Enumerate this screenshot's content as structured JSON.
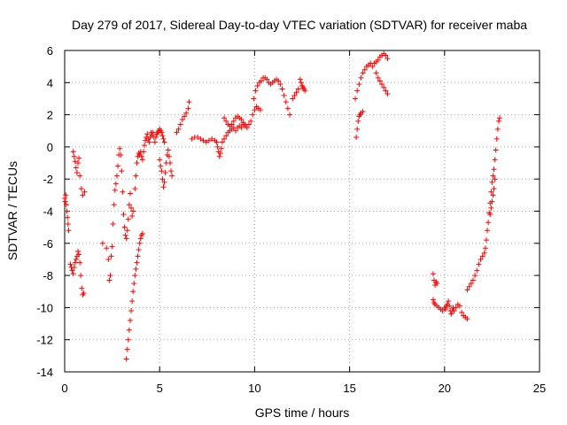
{
  "chart_data": {
    "type": "scatter",
    "title": "Day 279 of 2017, Sidereal Day-to-day VTEC variation (SDTVAR) for receiver maba",
    "xlabel": "GPS time / hours",
    "ylabel": "SDTVAR / TECUs",
    "xlim": [
      0,
      25
    ],
    "ylim": [
      -14,
      6
    ],
    "xticks": [
      0,
      5,
      10,
      15,
      20,
      25
    ],
    "yticks": [
      -14,
      -12,
      -10,
      -8,
      -6,
      -4,
      -2,
      0,
      2,
      4,
      6
    ],
    "xtick_labels": [
      "0",
      "5",
      "10",
      "15",
      "20",
      "25"
    ],
    "ytick_labels": [
      "-14",
      "-12",
      "-10",
      "-8",
      "-6",
      "-4",
      "-2",
      "0",
      "2",
      "4",
      "6"
    ],
    "grid": true,
    "legend": "none",
    "marker": "plus",
    "marker_color": "#ff0000",
    "series": [
      {
        "points": [
          [
            0.0,
            -3.2
          ],
          [
            0.03,
            -3.4
          ],
          [
            0.06,
            -3.0
          ],
          [
            0.09,
            -3.6
          ],
          [
            0.12,
            -4.0
          ],
          [
            0.15,
            -4.4
          ],
          [
            0.18,
            -4.8
          ],
          [
            0.21,
            -5.2
          ],
          [
            0.3,
            -7.3
          ],
          [
            0.35,
            -7.5
          ],
          [
            0.4,
            -7.7
          ],
          [
            0.45,
            -7.9
          ],
          [
            0.5,
            -7.5
          ],
          [
            0.55,
            -7.2
          ],
          [
            0.6,
            -7.0
          ],
          [
            0.65,
            -6.8
          ],
          [
            0.7,
            -6.5
          ],
          [
            0.75,
            -6.7
          ],
          [
            0.8,
            -7.2
          ],
          [
            0.85,
            -8.0
          ],
          [
            0.9,
            -8.8
          ],
          [
            0.95,
            -9.2
          ],
          [
            1.0,
            -9.1
          ],
          [
            0.45,
            -0.3
          ],
          [
            0.5,
            -0.6
          ],
          [
            0.55,
            -0.9
          ],
          [
            0.6,
            -1.3
          ],
          [
            0.65,
            -1.6
          ],
          [
            0.7,
            -1.0
          ],
          [
            0.75,
            -0.7
          ],
          [
            0.8,
            -1.8
          ],
          [
            0.88,
            -2.6
          ],
          [
            0.95,
            -3.0
          ],
          [
            1.05,
            -2.8
          ],
          [
            2.0,
            -6.0
          ],
          [
            2.2,
            -6.3
          ],
          [
            2.3,
            -7.0
          ],
          [
            2.35,
            -8.3
          ],
          [
            2.4,
            -8.0
          ],
          [
            2.45,
            -6.8
          ],
          [
            2.5,
            -6.2
          ],
          [
            2.55,
            -4.8
          ],
          [
            2.6,
            -3.6
          ],
          [
            2.65,
            -2.7
          ],
          [
            2.7,
            -2.3
          ],
          [
            2.75,
            -1.8
          ],
          [
            2.8,
            -1.2
          ],
          [
            2.85,
            -0.5
          ],
          [
            2.9,
            -0.1
          ],
          [
            2.95,
            -0.5
          ],
          [
            3.0,
            -1.5
          ],
          [
            3.05,
            -2.8
          ],
          [
            3.1,
            -4.2
          ],
          [
            3.15,
            -5.0
          ],
          [
            3.2,
            -5.5
          ],
          [
            3.25,
            -5.7
          ],
          [
            3.3,
            -5.2
          ],
          [
            3.35,
            -4.5
          ],
          [
            3.4,
            -3.6
          ],
          [
            3.45,
            -2.9
          ],
          [
            3.5,
            -3.8
          ],
          [
            3.55,
            -4.3
          ],
          [
            3.6,
            -4.0
          ],
          [
            3.25,
            -13.2
          ],
          [
            3.3,
            -12.6
          ],
          [
            3.35,
            -12.0
          ],
          [
            3.4,
            -11.4
          ],
          [
            3.45,
            -10.8
          ],
          [
            3.5,
            -10.2
          ],
          [
            3.55,
            -9.6
          ],
          [
            3.6,
            -9.0
          ],
          [
            3.65,
            -8.5
          ],
          [
            3.7,
            -8.0
          ],
          [
            3.75,
            -7.6
          ],
          [
            3.8,
            -7.2
          ],
          [
            3.85,
            -6.8
          ],
          [
            3.9,
            -6.4
          ],
          [
            3.95,
            -6.0
          ],
          [
            4.0,
            -5.7
          ],
          [
            4.05,
            -5.5
          ],
          [
            4.1,
            -5.4
          ],
          [
            3.7,
            -2.6
          ],
          [
            3.75,
            -1.8
          ],
          [
            3.8,
            -1.0
          ],
          [
            3.85,
            -0.6
          ],
          [
            3.9,
            -0.4
          ],
          [
            3.95,
            -0.5
          ],
          [
            4.0,
            -0.3
          ],
          [
            4.05,
            -0.6
          ],
          [
            4.1,
            -0.8
          ],
          [
            4.15,
            -0.3
          ],
          [
            4.2,
            0.1
          ],
          [
            4.25,
            0.4
          ],
          [
            4.3,
            0.6
          ],
          [
            4.35,
            0.8
          ],
          [
            4.4,
            0.5
          ],
          [
            4.45,
            0.3
          ],
          [
            4.5,
            0.6
          ],
          [
            4.55,
            0.9
          ],
          [
            4.6,
            0.7
          ],
          [
            4.65,
            0.9
          ],
          [
            4.7,
            0.6
          ],
          [
            4.75,
            0.3
          ],
          [
            4.8,
            0.6
          ],
          [
            4.85,
            0.8
          ],
          [
            4.9,
            0.9
          ],
          [
            4.95,
            1.0
          ],
          [
            5.0,
            1.1
          ],
          [
            5.05,
            1.0
          ],
          [
            5.1,
            0.9
          ],
          [
            5.15,
            0.7
          ],
          [
            5.2,
            0.5
          ],
          [
            5.25,
            0.3
          ],
          [
            5.0,
            -0.8
          ],
          [
            5.05,
            -1.2
          ],
          [
            5.1,
            -1.5
          ],
          [
            5.15,
            -2.0
          ],
          [
            5.2,
            -2.5
          ],
          [
            5.25,
            -2.2
          ],
          [
            5.3,
            -1.6
          ],
          [
            5.35,
            -1.0
          ],
          [
            5.4,
            -0.5
          ],
          [
            5.45,
            -0.2
          ],
          [
            5.5,
            -0.6
          ],
          [
            5.55,
            -1.0
          ],
          [
            5.6,
            -1.5
          ],
          [
            5.65,
            -1.8
          ],
          [
            5.9,
            0.9
          ],
          [
            6.0,
            1.1
          ],
          [
            6.1,
            1.4
          ],
          [
            6.2,
            1.7
          ],
          [
            6.3,
            1.9
          ],
          [
            6.4,
            2.1
          ],
          [
            6.5,
            2.4
          ],
          [
            6.55,
            2.8
          ],
          [
            6.7,
            0.5
          ],
          [
            6.85,
            0.6
          ],
          [
            7.0,
            0.6
          ],
          [
            7.15,
            0.5
          ],
          [
            7.3,
            0.4
          ],
          [
            7.45,
            0.3
          ],
          [
            7.6,
            0.4
          ],
          [
            7.75,
            0.5
          ],
          [
            7.9,
            0.4
          ],
          [
            8.0,
            0.3
          ],
          [
            8.05,
            0.0
          ],
          [
            8.1,
            -0.3
          ],
          [
            8.15,
            -0.6
          ],
          [
            8.2,
            -0.4
          ],
          [
            8.25,
            -0.1
          ],
          [
            8.3,
            0.3
          ],
          [
            8.4,
            0.5
          ],
          [
            8.5,
            0.7
          ],
          [
            8.6,
            0.9
          ],
          [
            8.7,
            1.0
          ],
          [
            8.8,
            1.1
          ],
          [
            8.9,
            1.2
          ],
          [
            9.0,
            1.0
          ],
          [
            9.1,
            1.2
          ],
          [
            9.2,
            1.3
          ],
          [
            9.3,
            1.2
          ],
          [
            9.4,
            1.4
          ],
          [
            9.5,
            1.3
          ],
          [
            9.6,
            1.2
          ],
          [
            9.7,
            1.4
          ],
          [
            9.8,
            1.6
          ],
          [
            9.9,
            2.0
          ],
          [
            10.0,
            2.3
          ],
          [
            10.1,
            2.5
          ],
          [
            10.2,
            2.4
          ],
          [
            10.3,
            2.3
          ],
          [
            8.4,
            1.8
          ],
          [
            8.5,
            1.6
          ],
          [
            8.6,
            1.4
          ],
          [
            8.7,
            1.3
          ],
          [
            8.8,
            1.4
          ],
          [
            8.9,
            1.6
          ],
          [
            9.0,
            1.8
          ],
          [
            9.1,
            1.9
          ],
          [
            9.2,
            1.8
          ],
          [
            9.3,
            1.7
          ],
          [
            9.4,
            1.5
          ],
          [
            9.5,
            1.4
          ],
          [
            9.95,
            3.0
          ],
          [
            10.05,
            3.5
          ],
          [
            10.15,
            3.8
          ],
          [
            10.25,
            4.0
          ],
          [
            10.35,
            4.1
          ],
          [
            10.45,
            4.3
          ],
          [
            10.55,
            4.3
          ],
          [
            10.65,
            4.2
          ],
          [
            10.75,
            4.0
          ],
          [
            10.85,
            3.9
          ],
          [
            10.95,
            4.0
          ],
          [
            11.05,
            4.1
          ],
          [
            11.15,
            4.2
          ],
          [
            11.25,
            4.1
          ],
          [
            11.35,
            3.9
          ],
          [
            11.45,
            3.6
          ],
          [
            11.55,
            3.2
          ],
          [
            11.65,
            2.8
          ],
          [
            11.75,
            2.4
          ],
          [
            11.85,
            2.0
          ],
          [
            12.0,
            3.0
          ],
          [
            12.1,
            3.2
          ],
          [
            12.2,
            3.4
          ],
          [
            12.3,
            3.6
          ],
          [
            12.4,
            4.2
          ],
          [
            12.45,
            4.0
          ],
          [
            12.5,
            3.8
          ],
          [
            12.55,
            3.7
          ],
          [
            12.6,
            3.6
          ],
          [
            12.65,
            3.5
          ],
          [
            15.35,
            0.6
          ],
          [
            15.4,
            1.1
          ],
          [
            15.45,
            1.6
          ],
          [
            15.5,
            1.9
          ],
          [
            15.55,
            2.0
          ],
          [
            15.6,
            2.1
          ],
          [
            15.7,
            2.2
          ],
          [
            15.3,
            3.0
          ],
          [
            15.4,
            3.5
          ],
          [
            15.5,
            3.9
          ],
          [
            15.6,
            4.3
          ],
          [
            15.7,
            4.6
          ],
          [
            15.8,
            4.8
          ],
          [
            15.9,
            5.0
          ],
          [
            16.0,
            5.1
          ],
          [
            16.1,
            5.2
          ],
          [
            16.2,
            5.0
          ],
          [
            16.3,
            5.2
          ],
          [
            16.4,
            5.3
          ],
          [
            16.5,
            5.4
          ],
          [
            16.6,
            5.6
          ],
          [
            16.7,
            5.7
          ],
          [
            16.8,
            5.8
          ],
          [
            16.9,
            5.7
          ],
          [
            17.0,
            5.5
          ],
          [
            16.4,
            4.6
          ],
          [
            16.5,
            4.3
          ],
          [
            16.6,
            4.1
          ],
          [
            16.7,
            3.9
          ],
          [
            16.8,
            3.7
          ],
          [
            16.9,
            3.5
          ],
          [
            17.0,
            3.3
          ],
          [
            19.4,
            -7.9
          ],
          [
            19.45,
            -8.3
          ],
          [
            19.5,
            -8.6
          ],
          [
            19.55,
            -8.4
          ],
          [
            19.6,
            -8.5
          ],
          [
            19.4,
            -9.5
          ],
          [
            19.45,
            -9.7
          ],
          [
            19.5,
            -9.8
          ],
          [
            19.6,
            -9.9
          ],
          [
            19.7,
            -10.0
          ],
          [
            19.8,
            -10.1
          ],
          [
            19.9,
            -10.2
          ],
          [
            20.0,
            -10.0
          ],
          [
            20.05,
            -10.1
          ],
          [
            20.1,
            -9.9
          ],
          [
            20.15,
            -9.8
          ],
          [
            20.2,
            -9.6
          ],
          [
            20.25,
            -9.9
          ],
          [
            20.3,
            -10.2
          ],
          [
            20.35,
            -10.4
          ],
          [
            20.4,
            -10.2
          ],
          [
            20.45,
            -10.0
          ],
          [
            20.5,
            -10.2
          ],
          [
            20.6,
            -10.0
          ],
          [
            20.7,
            -9.8
          ],
          [
            20.8,
            -9.9
          ],
          [
            20.9,
            -10.3
          ],
          [
            21.0,
            -10.5
          ],
          [
            21.1,
            -10.6
          ],
          [
            21.2,
            -10.7
          ],
          [
            21.2,
            -8.9
          ],
          [
            21.3,
            -8.7
          ],
          [
            21.4,
            -8.5
          ],
          [
            21.5,
            -8.3
          ],
          [
            21.6,
            -8.0
          ],
          [
            21.7,
            -7.7
          ],
          [
            21.8,
            -7.3
          ],
          [
            21.9,
            -7.0
          ],
          [
            22.0,
            -6.8
          ],
          [
            22.1,
            -6.6
          ],
          [
            22.15,
            -6.3
          ],
          [
            22.2,
            -5.8
          ],
          [
            22.25,
            -5.2
          ],
          [
            22.3,
            -4.7
          ],
          [
            22.35,
            -4.1
          ],
          [
            22.4,
            -3.5
          ],
          [
            22.45,
            -2.8
          ],
          [
            22.5,
            -2.2
          ],
          [
            22.55,
            -1.8
          ],
          [
            22.6,
            -1.4
          ],
          [
            22.65,
            -0.8
          ],
          [
            22.7,
            -0.2
          ],
          [
            22.75,
            0.5
          ],
          [
            22.8,
            1.1
          ],
          [
            22.85,
            1.6
          ],
          [
            22.9,
            1.8
          ],
          [
            22.4,
            -4.2
          ],
          [
            22.45,
            -3.8
          ],
          [
            22.5,
            -3.4
          ],
          [
            22.55,
            -3.0
          ],
          [
            22.6,
            -2.6
          ],
          [
            22.65,
            -2.0
          ]
        ]
      }
    ]
  }
}
